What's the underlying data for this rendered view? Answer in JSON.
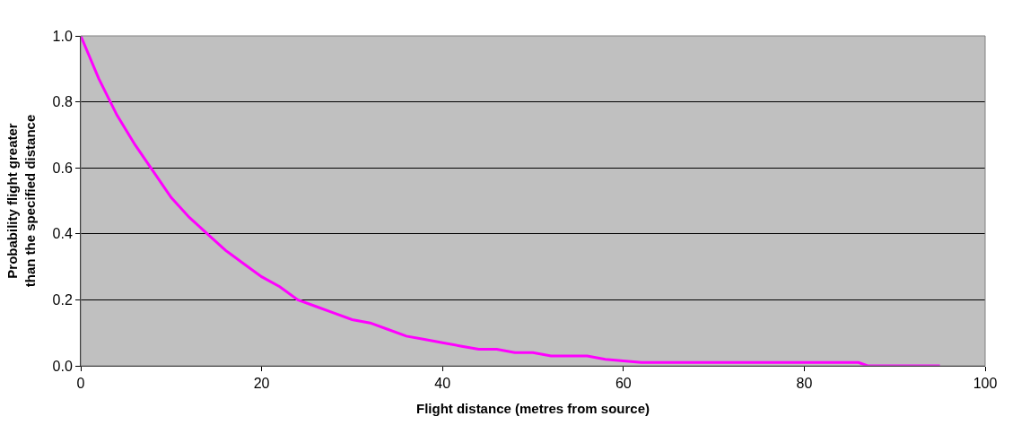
{
  "chart_data": {
    "type": "line",
    "xlabel": "Flight distance (metres from source)",
    "ylabel": "Probability flight greater\nthan the specified distance",
    "x": [
      0,
      2,
      4,
      6,
      8,
      10,
      12,
      14,
      16,
      18,
      20,
      22,
      24,
      26,
      28,
      30,
      32,
      34,
      36,
      38,
      40,
      42,
      44,
      46,
      48,
      50,
      52,
      54,
      56,
      58,
      62,
      70,
      80,
      86,
      87,
      95
    ],
    "series": [
      {
        "color": "#ff00ff",
        "values": [
          1.0,
          0.87,
          0.76,
          0.67,
          0.59,
          0.51,
          0.45,
          0.4,
          0.35,
          0.31,
          0.27,
          0.24,
          0.2,
          0.18,
          0.16,
          0.14,
          0.13,
          0.11,
          0.09,
          0.08,
          0.07,
          0.06,
          0.05,
          0.05,
          0.04,
          0.04,
          0.03,
          0.03,
          0.03,
          0.02,
          0.01,
          0.01,
          0.01,
          0.01,
          0.0,
          0.0
        ]
      }
    ],
    "xlim": [
      0,
      100
    ],
    "xticks": [
      0,
      20,
      40,
      60,
      80,
      100
    ],
    "ylim": [
      0,
      1.0
    ],
    "yticks": [
      {
        "value": 0,
        "label": "0.0"
      },
      {
        "value": 0.2,
        "label": "0.2"
      },
      {
        "value": 0.4,
        "label": "0.4"
      },
      {
        "value": 0.6,
        "label": "0.6"
      },
      {
        "value": 0.8,
        "label": "0.8"
      },
      {
        "value": 1.0,
        "label": "1.0"
      }
    ],
    "grid": "y",
    "marker": "none",
    "line_style": "solid"
  }
}
